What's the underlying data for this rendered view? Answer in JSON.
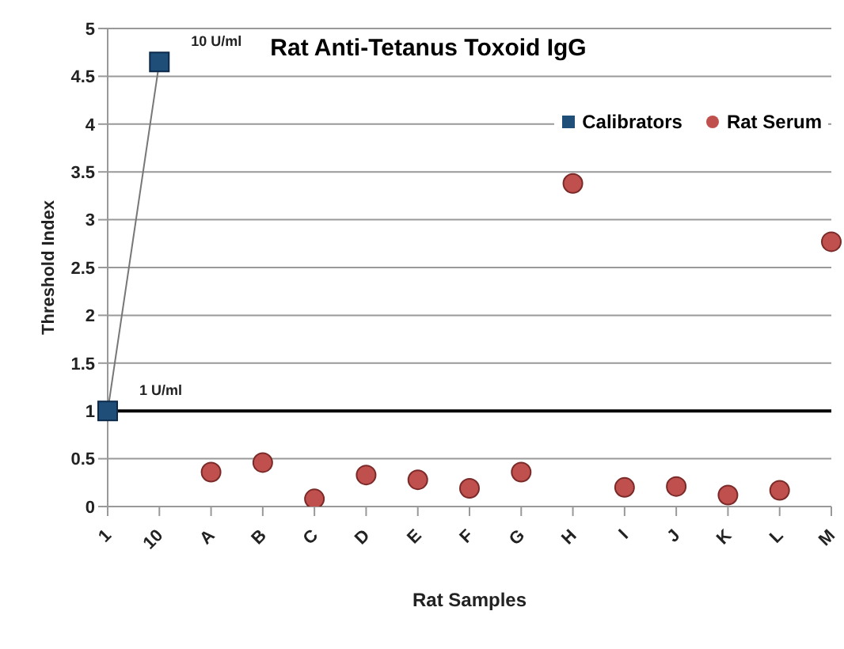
{
  "chart_data": {
    "type": "scatter",
    "title": "Rat Anti-Tetanus Toxoid IgG",
    "xlabel": "Rat Samples",
    "ylabel": "Threshold Index",
    "categories": [
      "1",
      "10",
      "A",
      "B",
      "C",
      "D",
      "E",
      "F",
      "G",
      "H",
      "I",
      "J",
      "K",
      "L",
      "M"
    ],
    "series": [
      {
        "name": "Calibrators",
        "type": "line",
        "marker": "square",
        "color": "#1f4e79",
        "values": [
          1,
          4.65,
          null,
          null,
          null,
          null,
          null,
          null,
          null,
          null,
          null,
          null,
          null,
          null,
          null
        ]
      },
      {
        "name": "Rat Serum",
        "marker": "circle",
        "color": "#c0504d",
        "values": [
          null,
          null,
          0.36,
          0.46,
          0.08,
          0.33,
          0.28,
          0.19,
          0.36,
          3.38,
          0.2,
          0.21,
          0.12,
          0.17,
          2.77
        ]
      }
    ],
    "ylim": [
      0,
      5
    ],
    "yticks": [
      0,
      0.5,
      1,
      1.5,
      2,
      2.5,
      3,
      3.5,
      4,
      4.5,
      5
    ],
    "grid": "y",
    "legend": "top right",
    "ref_lines": [
      {
        "axis": "y",
        "value": 1,
        "color": "#000000"
      }
    ],
    "annotations": [
      {
        "text": "10 U/ml",
        "x": "10",
        "y": 4.65
      },
      {
        "text": "1 U/ml",
        "x": "1",
        "y": 1
      }
    ]
  }
}
